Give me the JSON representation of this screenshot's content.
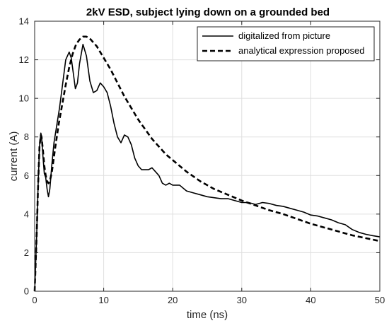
{
  "chart_data": {
    "type": "line",
    "title": "2kV ESD, subject lying down on a grounded bed",
    "xlabel": "time (ns)",
    "ylabel": "current (A)",
    "xlim": [
      0,
      50
    ],
    "ylim": [
      0,
      14
    ],
    "xticks": [
      "0",
      "10",
      "20",
      "30",
      "40",
      "50"
    ],
    "yticks": [
      "0",
      "2",
      "4",
      "6",
      "8",
      "10",
      "12",
      "14"
    ],
    "grid": true,
    "legend_position": "top-right",
    "series": [
      {
        "name": "digitalized from picture",
        "style": "solid",
        "color": "#000000",
        "x": [
          0,
          0.3,
          0.5,
          0.7,
          0.9,
          1.0,
          1.2,
          1.4,
          1.6,
          1.8,
          2.0,
          2.2,
          2.5,
          2.8,
          3.2,
          3.6,
          4.0,
          4.5,
          5.0,
          5.3,
          5.6,
          5.9,
          6.2,
          6.5,
          7.0,
          7.5,
          8.0,
          8.5,
          9.0,
          9.5,
          10.0,
          10.5,
          11.0,
          11.5,
          12.0,
          12.5,
          13.0,
          13.5,
          14.0,
          14.5,
          15.0,
          15.5,
          16.0,
          16.5,
          17.0,
          17.5,
          18.0,
          18.5,
          19.0,
          19.5,
          20.0,
          21.0,
          22.0,
          23.0,
          24.0,
          25.0,
          26.0,
          27.0,
          28.0,
          29.0,
          30.0,
          31.0,
          32.0,
          33.0,
          34.0,
          35.0,
          36.0,
          37.0,
          38.0,
          39.0,
          40.0,
          41.0,
          42.0,
          43.0,
          44.0,
          45.0,
          46.0,
          47.0,
          48.0,
          49.0,
          50.0
        ],
        "y": [
          0,
          3.0,
          5.5,
          7.5,
          8.2,
          8.0,
          7.0,
          6.1,
          5.9,
          5.3,
          4.9,
          5.3,
          6.6,
          7.7,
          8.6,
          9.5,
          10.6,
          12.0,
          12.4,
          12.1,
          11.3,
          10.5,
          10.8,
          11.8,
          12.8,
          12.2,
          10.9,
          10.3,
          10.4,
          10.8,
          10.6,
          10.3,
          9.6,
          8.7,
          8.0,
          7.7,
          8.1,
          8.0,
          7.6,
          6.9,
          6.5,
          6.3,
          6.3,
          6.3,
          6.4,
          6.2,
          6.0,
          5.6,
          5.5,
          5.6,
          5.5,
          5.5,
          5.2,
          5.1,
          5.0,
          4.9,
          4.85,
          4.8,
          4.8,
          4.7,
          4.6,
          4.6,
          4.5,
          4.6,
          4.55,
          4.45,
          4.4,
          4.3,
          4.2,
          4.1,
          3.95,
          3.9,
          3.8,
          3.7,
          3.55,
          3.45,
          3.2,
          3.05,
          2.95,
          2.88,
          2.82
        ]
      },
      {
        "name": "analytical expression proposed",
        "style": "dashed",
        "color": "#000000",
        "x": [
          0,
          0.3,
          0.5,
          0.7,
          0.9,
          1.0,
          1.2,
          1.4,
          1.6,
          1.8,
          2.0,
          2.2,
          2.5,
          3.0,
          3.5,
          4.0,
          4.5,
          5.0,
          5.5,
          6.0,
          6.5,
          7.0,
          7.5,
          8.0,
          8.5,
          9.0,
          9.5,
          10.0,
          11.0,
          12.0,
          13.0,
          14.0,
          15.0,
          16.0,
          17.0,
          18.0,
          19.0,
          20.0,
          22.0,
          24.0,
          26.0,
          28.0,
          30.0,
          32.0,
          34.0,
          36.0,
          38.0,
          40.0,
          42.0,
          44.0,
          46.0,
          48.0,
          50.0
        ],
        "y": [
          0,
          3.0,
          5.5,
          7.5,
          8.1,
          8.0,
          7.3,
          6.5,
          6.0,
          5.7,
          5.6,
          5.7,
          6.2,
          7.5,
          8.7,
          9.7,
          10.7,
          11.6,
          12.3,
          12.8,
          13.05,
          13.2,
          13.2,
          13.1,
          12.9,
          12.7,
          12.4,
          12.1,
          11.5,
          10.8,
          10.1,
          9.5,
          8.9,
          8.4,
          7.9,
          7.5,
          7.1,
          6.8,
          6.2,
          5.7,
          5.3,
          5.0,
          4.7,
          4.45,
          4.2,
          4.0,
          3.75,
          3.5,
          3.3,
          3.1,
          2.9,
          2.75,
          2.6
        ]
      }
    ]
  }
}
